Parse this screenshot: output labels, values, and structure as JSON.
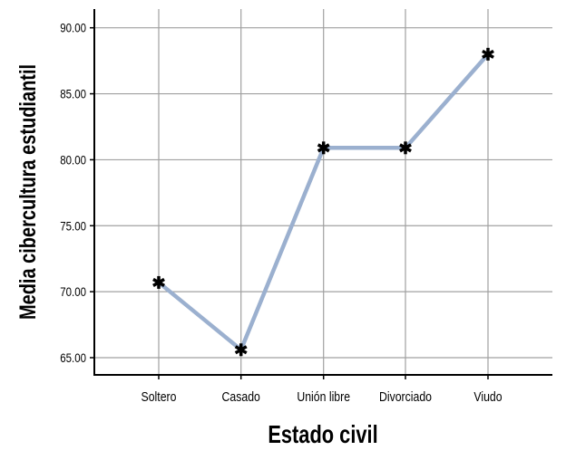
{
  "chart_data": {
    "type": "line",
    "title": "",
    "xlabel": "Estado civil",
    "ylabel": "Media cibercultura estudiantil",
    "categories": [
      "Soltero",
      "Casado",
      "Unión libre",
      "Divorciado",
      "Viudo"
    ],
    "values": [
      70.7,
      65.6,
      80.9,
      80.9,
      88.0
    ],
    "ylim": [
      65,
      90
    ],
    "yticks": [
      "65.00",
      "70.00",
      "75.00",
      "80.00",
      "85.00",
      "90.00"
    ],
    "grid": true,
    "marker": "asterisk",
    "line_color": "#9bb0cf"
  }
}
